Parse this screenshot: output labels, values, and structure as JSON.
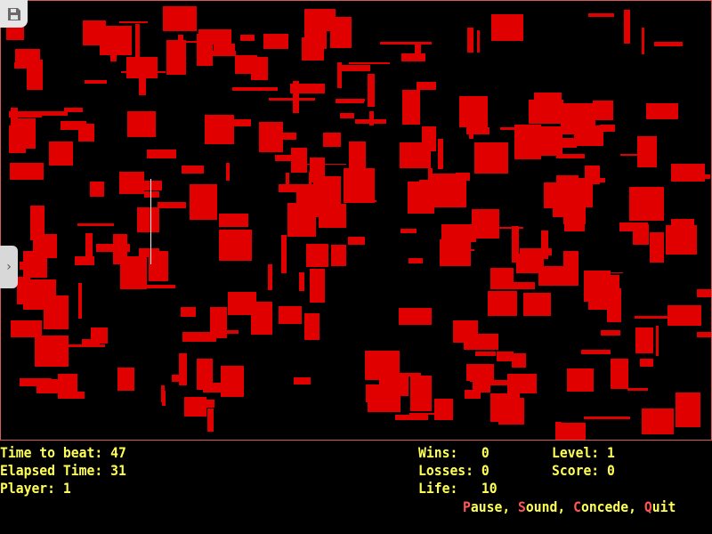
{
  "stats_left": {
    "time_to_beat_label": "Time to beat:",
    "time_to_beat": "47",
    "elapsed_label": "Elapsed Time:",
    "elapsed": "31",
    "player_label": "Player:",
    "player": "1"
  },
  "stats_mid": {
    "wins_label": "Wins:",
    "wins": "0",
    "losses_label": "Losses:",
    "losses": "0",
    "life_label": "Life:",
    "life": "10"
  },
  "stats_right": {
    "level_label": "Level:",
    "level": "1",
    "score_label": "Score:",
    "score": "0"
  },
  "menu": [
    {
      "key": "P",
      "rest": "ause"
    },
    {
      "key": "S",
      "rest": "ound"
    },
    {
      "key": "C",
      "rest": "oncede"
    },
    {
      "key": "Q",
      "rest": "uit"
    }
  ],
  "colors": {
    "obstacle": "#e00000",
    "text": "#ffff55",
    "hotkey": "#ff5555",
    "border": "#d85a5a"
  },
  "icons": {
    "save": "floppy-disk-icon",
    "expand": "chevron-right-icon"
  }
}
